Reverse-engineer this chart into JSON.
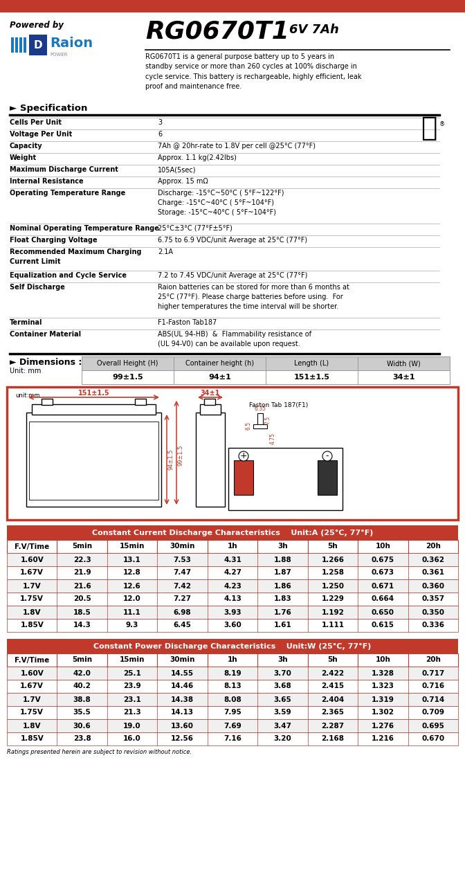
{
  "title_model": "RG0670T1",
  "title_spec": "6V 7Ah",
  "powered_by": "Powered by",
  "description": "RG0670T1 is a general purpose battery up to 5 years in\nstandby service or more than 260 cycles at 100% discharge in\ncycle service. This battery is rechargeable, highly efficient, leak\nproof and maintenance free.",
  "top_bar_color": "#c0392b",
  "spec_header": "► Specification",
  "specs": [
    [
      "Cells Per Unit",
      "3"
    ],
    [
      "Voltage Per Unit",
      "6"
    ],
    [
      "Capacity",
      "7Ah @ 20hr-rate to 1.8V per cell @25°C (77°F)"
    ],
    [
      "Weight",
      "Approx. 1.1 kg(2.42lbs)"
    ],
    [
      "Maximum Discharge Current",
      "105A(5sec)"
    ],
    [
      "Internal Resistance",
      "Approx. 15 mΩ"
    ],
    [
      "Operating Temperature Range",
      "Discharge: -15°C~50°C ( 5°F~122°F)\nCharge: -15°C~40°C ( 5°F~104°F)\nStorage: -15°C~40°C ( 5°F~104°F)"
    ],
    [
      "Nominal Operating Temperature Range",
      "25°C±3°C (77°F±5°F)"
    ],
    [
      "Float Charging Voltage",
      "6.75 to 6.9 VDC/unit Average at 25°C (77°F)"
    ],
    [
      "Recommended Maximum Charging\nCurrent Limit",
      "2.1A"
    ],
    [
      "Equalization and Cycle Service",
      "7.2 to 7.45 VDC/unit Average at 25°C (77°F)"
    ],
    [
      "Self Discharge",
      "Raion batteries can be stored for more than 6 months at\n25°C (77°F). Please charge batteries before using.  For\nhigher temperatures the time interval will be shorter."
    ],
    [
      "Terminal",
      "F1-Faston Tab187"
    ],
    [
      "Container Material",
      "ABS(UL 94-HB)  &  Flammability resistance of\n(UL 94-V0) can be available upon request."
    ]
  ],
  "dim_header": "► Dimensions :",
  "dim_unit": "Unit: mm",
  "dim_cols": [
    "Overall Height (H)",
    "Container height (h)",
    "Length (L)",
    "Width (W)"
  ],
  "dim_vals": [
    "99±1.5",
    "94±1",
    "151±1.5",
    "34±1"
  ],
  "diagram_border_color": "#c0392b",
  "cc_header": "Constant Current Discharge Characteristics    Unit:A (25°C, 77°F)",
  "cc_header_color": "#c0392b",
  "cc_cols": [
    "F.V/Time",
    "5min",
    "15min",
    "30min",
    "1h",
    "3h",
    "5h",
    "10h",
    "20h"
  ],
  "cc_rows": [
    [
      "1.60V",
      "22.3",
      "13.1",
      "7.53",
      "4.31",
      "1.88",
      "1.266",
      "0.675",
      "0.362"
    ],
    [
      "1.67V",
      "21.9",
      "12.8",
      "7.47",
      "4.27",
      "1.87",
      "1.258",
      "0.673",
      "0.361"
    ],
    [
      "1.7V",
      "21.6",
      "12.6",
      "7.42",
      "4.23",
      "1.86",
      "1.250",
      "0.671",
      "0.360"
    ],
    [
      "1.75V",
      "20.5",
      "12.0",
      "7.27",
      "4.13",
      "1.83",
      "1.229",
      "0.664",
      "0.357"
    ],
    [
      "1.8V",
      "18.5",
      "11.1",
      "6.98",
      "3.93",
      "1.76",
      "1.192",
      "0.650",
      "0.350"
    ],
    [
      "1.85V",
      "14.3",
      "9.3",
      "6.45",
      "3.60",
      "1.61",
      "1.111",
      "0.615",
      "0.336"
    ]
  ],
  "cp_header": "Constant Power Discharge Characteristics    Unit:W (25°C, 77°F)",
  "cp_header_color": "#c0392b",
  "cp_cols": [
    "F.V/Time",
    "5min",
    "15min",
    "30min",
    "1h",
    "3h",
    "5h",
    "10h",
    "20h"
  ],
  "cp_rows": [
    [
      "1.60V",
      "42.0",
      "25.1",
      "14.55",
      "8.19",
      "3.70",
      "2.422",
      "1.328",
      "0.717"
    ],
    [
      "1.67V",
      "40.2",
      "23.9",
      "14.46",
      "8.13",
      "3.68",
      "2.415",
      "1.323",
      "0.716"
    ],
    [
      "1.7V",
      "38.8",
      "23.1",
      "14.38",
      "8.08",
      "3.65",
      "2.404",
      "1.319",
      "0.714"
    ],
    [
      "1.75V",
      "35.5",
      "21.3",
      "14.13",
      "7.95",
      "3.59",
      "2.365",
      "1.302",
      "0.709"
    ],
    [
      "1.8V",
      "30.6",
      "19.0",
      "13.60",
      "7.69",
      "3.47",
      "2.287",
      "1.276",
      "0.695"
    ],
    [
      "1.85V",
      "23.8",
      "16.0",
      "12.56",
      "7.16",
      "3.20",
      "2.168",
      "1.216",
      "0.670"
    ]
  ],
  "footer": "Ratings presented herein are subject to revision without notice.",
  "row_alt_color": "#f0f0f0",
  "row_main_color": "#ffffff",
  "table_border_color": "#c0392b",
  "spec_line_color": "#aaaaaa",
  "spec_bold_line_color": "#000000"
}
